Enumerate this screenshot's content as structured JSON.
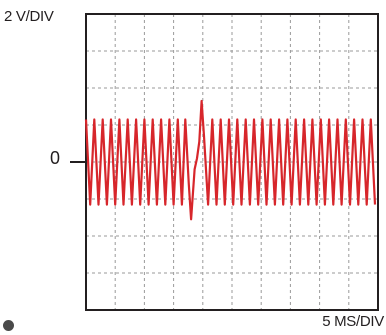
{
  "chart_data": {
    "type": "line",
    "instrument": "oscilloscope",
    "vertical_scale_label": "2 V/DIV",
    "horizontal_scale_label": "5 MS/DIV",
    "zero_reference_label": "0",
    "grid": true,
    "grid_divisions": {
      "x": 10,
      "y": 8
    },
    "xlim": [
      0,
      50
    ],
    "ylim": [
      -8,
      8
    ],
    "xunit": "ms",
    "yunit": "V",
    "trace_color": "#d7262b",
    "series": [
      {
        "waveform": "square-ish oscillation",
        "amplitude_v": 2.3,
        "frequency_hz": 700,
        "x": [
          0,
          17,
          17.6,
          18,
          18.6,
          19,
          19.4,
          19.8,
          20.2,
          50
        ],
        "y": [
          2.3,
          2.3,
          -1.2,
          -3.1,
          -0.4,
          0.2,
          1.1,
          3.3,
          1.4,
          2.3
        ],
        "note_points": "envelope of the oscillation; the disturbance near the middle shows a negative spike and a positive spike"
      }
    ]
  }
}
